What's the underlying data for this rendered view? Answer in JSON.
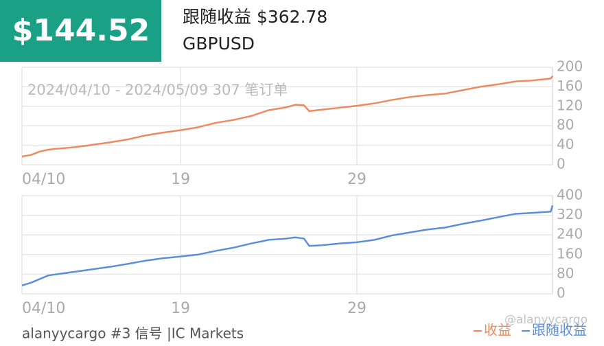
{
  "header": {
    "badge": "$144.52",
    "title": "跟随收益 $362.78",
    "symbol": "GBPUSD"
  },
  "chart_data": [
    {
      "type": "line",
      "annotation": "2024/04/10 - 2024/05/09 307 笔订单",
      "x": [
        0,
        0.5,
        1,
        1.5,
        2,
        3,
        4,
        5,
        6,
        7,
        8,
        9,
        10,
        11,
        12,
        13,
        14,
        15,
        15.5,
        16,
        16.3,
        17,
        18,
        19,
        20,
        21,
        22,
        23,
        24,
        25,
        26,
        27,
        28,
        29,
        30,
        30.1
      ],
      "series": [
        {
          "name": "收益",
          "color": "#ee8a5f",
          "values": [
            17,
            20,
            27,
            31,
            33,
            36,
            41,
            46,
            52,
            60,
            66,
            71,
            77,
            86,
            92,
            100,
            112,
            118,
            123,
            122,
            110,
            113,
            117,
            121,
            126,
            133,
            139,
            143,
            146,
            153,
            160,
            165,
            171,
            173,
            177,
            182
          ]
        }
      ],
      "xlim": [
        0,
        30.1
      ],
      "ylim": [
        0,
        200
      ],
      "xticks": [
        {
          "value": 0,
          "label": "04/10"
        },
        {
          "value": 9,
          "label": "19"
        },
        {
          "value": 19,
          "label": "29"
        }
      ],
      "yticks": [
        0,
        40,
        80,
        120,
        160,
        200
      ],
      "grid": true
    },
    {
      "type": "line",
      "x": [
        0,
        0.5,
        1,
        1.5,
        2,
        3,
        4,
        5,
        6,
        7,
        8,
        9,
        10,
        11,
        12,
        13,
        14,
        15,
        15.5,
        16,
        16.3,
        17,
        18,
        19,
        20,
        21,
        22,
        23,
        24,
        25,
        26,
        27,
        28,
        29,
        30,
        30.1
      ],
      "series": [
        {
          "name": "跟随收益",
          "color": "#5b8fd9",
          "values": [
            34,
            45,
            60,
            75,
            80,
            90,
            100,
            110,
            122,
            135,
            145,
            152,
            160,
            175,
            188,
            205,
            220,
            225,
            230,
            225,
            195,
            198,
            205,
            210,
            220,
            238,
            250,
            262,
            270,
            285,
            298,
            312,
            326,
            330,
            335,
            360
          ]
        }
      ],
      "xlim": [
        0,
        30.1
      ],
      "ylim": [
        0,
        400
      ],
      "xticks": [
        {
          "value": 0,
          "label": "04/10"
        },
        {
          "value": 9,
          "label": "19"
        },
        {
          "value": 19,
          "label": "29"
        }
      ],
      "yticks": [
        0,
        80,
        160,
        240,
        320,
        400
      ],
      "grid": true
    }
  ],
  "footer": {
    "signal": "alanyycargo #3 信号 |IC Markets",
    "watermark": "@alanyycargo"
  }
}
